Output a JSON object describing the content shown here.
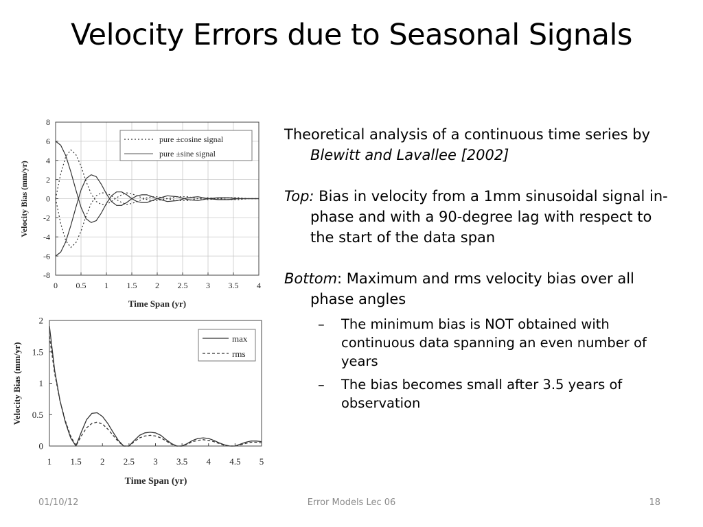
{
  "title": "Velocity Errors due to Seasonal Signals",
  "text": {
    "p1_a": "Theoretical analysis of a continuous time series by ",
    "p1_b": "Blewitt and Lavallee [2002]",
    "p2_label": "Top:",
    "p2_text": "  Bias in velocity from a 1mm sinusoidal signal in-phase and  with a 90-degree lag with respect to the start of the data span",
    "p3_label": "Bottom",
    "p3_text": ":  Maximum and rms velocity  bias over all phase angles",
    "bullets": [
      "The minimum bias is NOT obtained with continuous data spanning an even number of years",
      "The bias becomes small after 3.5 years of  observation"
    ],
    "dash": "–"
  },
  "footer": {
    "date": "01/10/12",
    "center": "Error Models Lec 06",
    "page": "18"
  },
  "chart_data": [
    {
      "type": "line",
      "xlabel": "Time Span (yr)",
      "ylabel": "Velocity Bias (mm/yr)",
      "xlim": [
        0,
        4
      ],
      "ylim": [
        -8,
        8
      ],
      "xticks": [
        "0",
        "0.5",
        "1",
        "1.5",
        "2",
        "2.5",
        "3",
        "3.5",
        "4"
      ],
      "yticks": [
        "-8",
        "-6",
        "-4",
        "-2",
        "0",
        "2",
        "4",
        "6",
        "8"
      ],
      "grid": true,
      "legend_position": "top-right",
      "series": [
        {
          "name": "pure ±cosine signal",
          "style": "dotted",
          "x": [
            0,
            0.1,
            0.2,
            0.3,
            0.4,
            0.5,
            0.6,
            0.7,
            0.8,
            0.9,
            1.0,
            1.1,
            1.2,
            1.3,
            1.4,
            1.5,
            1.6,
            1.7,
            1.8,
            1.9,
            2.0,
            2.2,
            2.4,
            2.6,
            2.8,
            3.0,
            3.2,
            3.4,
            3.6,
            3.8,
            4.0
          ],
          "y": [
            0,
            2.6,
            4.4,
            5.1,
            4.6,
            3.4,
            1.8,
            0.5,
            -0.3,
            -0.6,
            -0.6,
            -0.3,
            0.1,
            0.4,
            0.6,
            0.5,
            0.3,
            0.1,
            -0.1,
            -0.2,
            -0.2,
            0.0,
            0.2,
            0.2,
            0.0,
            -0.1,
            0.0,
            0.1,
            0.1,
            0.0,
            0.0
          ]
        },
        {
          "name": "pure ±cosine signal",
          "style": "dotted",
          "x": [
            0,
            0.1,
            0.2,
            0.3,
            0.4,
            0.5,
            0.6,
            0.7,
            0.8,
            0.9,
            1.0,
            1.1,
            1.2,
            1.3,
            1.4,
            1.5,
            1.6,
            1.7,
            1.8,
            1.9,
            2.0,
            2.2,
            2.4,
            2.6,
            2.8,
            3.0,
            3.2,
            3.4,
            3.6,
            3.8,
            4.0
          ],
          "y": [
            0,
            -2.6,
            -4.4,
            -5.1,
            -4.6,
            -3.4,
            -1.8,
            -0.5,
            0.3,
            0.6,
            0.6,
            0.3,
            -0.1,
            -0.4,
            -0.6,
            -0.5,
            -0.3,
            -0.1,
            0.1,
            0.2,
            0.2,
            0.0,
            -0.2,
            -0.2,
            0.0,
            0.1,
            0.0,
            -0.1,
            -0.1,
            0.0,
            0.0
          ]
        },
        {
          "name": "pure ±sine signal",
          "style": "solid",
          "x": [
            0,
            0.1,
            0.2,
            0.3,
            0.4,
            0.5,
            0.6,
            0.7,
            0.8,
            0.9,
            1.0,
            1.1,
            1.2,
            1.3,
            1.4,
            1.5,
            1.6,
            1.7,
            1.8,
            1.9,
            2.0,
            2.2,
            2.4,
            2.6,
            2.8,
            3.0,
            3.2,
            3.4,
            3.6,
            3.8,
            4.0
          ],
          "y": [
            6.0,
            5.6,
            4.5,
            2.8,
            0.9,
            -0.9,
            -2.1,
            -2.5,
            -2.3,
            -1.5,
            -0.5,
            0.3,
            0.7,
            0.7,
            0.4,
            0.0,
            -0.3,
            -0.4,
            -0.4,
            -0.2,
            0.0,
            0.3,
            0.2,
            -0.1,
            -0.2,
            0.0,
            0.1,
            0.1,
            0.0,
            0.0,
            0.0
          ]
        },
        {
          "name": "pure ±sine signal",
          "style": "solid",
          "x": [
            0,
            0.1,
            0.2,
            0.3,
            0.4,
            0.5,
            0.6,
            0.7,
            0.8,
            0.9,
            1.0,
            1.1,
            1.2,
            1.3,
            1.4,
            1.5,
            1.6,
            1.7,
            1.8,
            1.9,
            2.0,
            2.2,
            2.4,
            2.6,
            2.8,
            3.0,
            3.2,
            3.4,
            3.6,
            3.8,
            4.0
          ],
          "y": [
            -6.0,
            -5.6,
            -4.5,
            -2.8,
            -0.9,
            0.9,
            2.1,
            2.5,
            2.3,
            1.5,
            0.5,
            -0.3,
            -0.7,
            -0.7,
            -0.4,
            0.0,
            0.3,
            0.4,
            0.4,
            0.2,
            0.0,
            -0.3,
            -0.2,
            0.1,
            0.2,
            0.0,
            -0.1,
            -0.1,
            0.0,
            0.0,
            0.0
          ]
        }
      ]
    },
    {
      "type": "line",
      "xlabel": "Time Span (yr)",
      "ylabel": "Velocity Bias (mm/yr)",
      "xlim": [
        1,
        5
      ],
      "ylim": [
        0,
        2
      ],
      "xticks": [
        "1",
        "1.5",
        "2",
        "2.5",
        "3",
        "3.5",
        "4",
        "4.5",
        "5"
      ],
      "yticks": [
        "0",
        "0.5",
        "1",
        "1.5",
        "2"
      ],
      "grid": false,
      "legend_position": "top-right",
      "series": [
        {
          "name": "max",
          "style": "solid",
          "x": [
            1.0,
            1.1,
            1.2,
            1.3,
            1.4,
            1.5,
            1.6,
            1.7,
            1.8,
            1.9,
            2.0,
            2.1,
            2.2,
            2.3,
            2.4,
            2.5,
            2.6,
            2.7,
            2.8,
            2.9,
            3.0,
            3.1,
            3.2,
            3.3,
            3.4,
            3.5,
            3.6,
            3.7,
            3.8,
            3.9,
            4.0,
            4.1,
            4.2,
            4.3,
            4.4,
            4.5,
            4.6,
            4.7,
            4.8,
            4.9,
            5.0
          ],
          "y": [
            1.91,
            1.2,
            0.72,
            0.38,
            0.13,
            0.0,
            0.22,
            0.42,
            0.52,
            0.53,
            0.47,
            0.36,
            0.22,
            0.09,
            0.0,
            0.0,
            0.09,
            0.17,
            0.21,
            0.22,
            0.21,
            0.17,
            0.1,
            0.04,
            0.0,
            0.0,
            0.04,
            0.09,
            0.12,
            0.13,
            0.12,
            0.09,
            0.05,
            0.02,
            0.0,
            0.0,
            0.03,
            0.06,
            0.08,
            0.08,
            0.07
          ]
        },
        {
          "name": "rms",
          "style": "dashed",
          "x": [
            1.0,
            1.1,
            1.2,
            1.3,
            1.4,
            1.5,
            1.6,
            1.7,
            1.8,
            1.9,
            2.0,
            2.1,
            2.2,
            2.3,
            2.4,
            2.5,
            2.6,
            2.7,
            2.8,
            2.9,
            3.0,
            3.1,
            3.2,
            3.3,
            3.4,
            3.5,
            3.6,
            3.7,
            3.8,
            3.9,
            4.0,
            4.1,
            4.2,
            4.3,
            4.4,
            4.5,
            4.6,
            4.7,
            4.8,
            4.9,
            5.0
          ],
          "y": [
            1.75,
            1.15,
            0.72,
            0.4,
            0.16,
            0.0,
            0.16,
            0.29,
            0.36,
            0.38,
            0.35,
            0.27,
            0.17,
            0.07,
            0.0,
            0.0,
            0.07,
            0.13,
            0.16,
            0.17,
            0.16,
            0.13,
            0.08,
            0.03,
            0.0,
            0.0,
            0.03,
            0.07,
            0.09,
            0.1,
            0.09,
            0.07,
            0.04,
            0.01,
            0.0,
            0.0,
            0.02,
            0.04,
            0.06,
            0.06,
            0.05
          ]
        }
      ]
    }
  ]
}
